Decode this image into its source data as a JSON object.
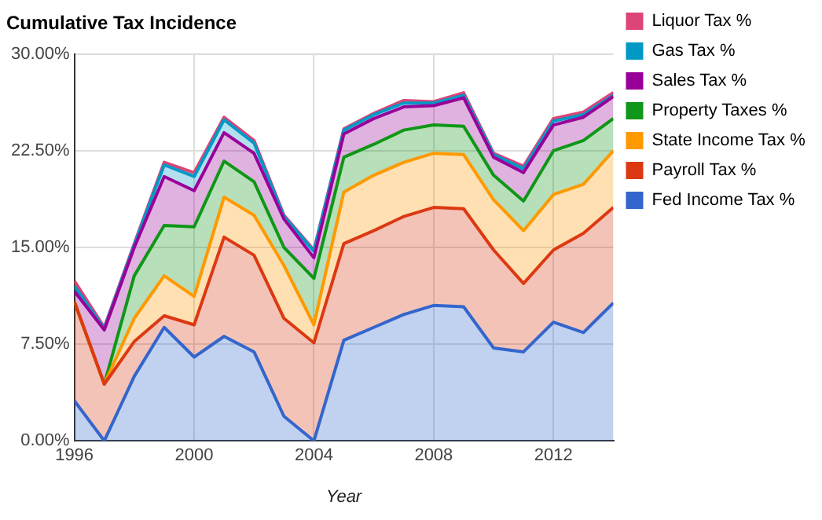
{
  "chart_data": {
    "type": "area",
    "title": "Cumulative Tax Incidence",
    "xlabel": "Year",
    "stacked": true,
    "marker": "none",
    "grid": true,
    "legend": "top right",
    "x": [
      1996,
      1997,
      1998,
      1999,
      2000,
      2001,
      2002,
      2003,
      2004,
      2005,
      2006,
      2007,
      2008,
      2009,
      2010,
      2011,
      2012,
      2013,
      2014
    ],
    "xlim": [
      1996,
      2014
    ],
    "xticks": [
      1996,
      2000,
      2004,
      2008,
      2012
    ],
    "ylim": [
      0,
      30
    ],
    "yticks": [
      {
        "value": 0,
        "label": "0.00%"
      },
      {
        "value": 7.5,
        "label": "7.50%"
      },
      {
        "value": 15,
        "label": "15.00%"
      },
      {
        "value": 22.5,
        "label": "22.50%"
      },
      {
        "value": 30,
        "label": "30.00%"
      }
    ],
    "series": [
      {
        "name": "Fed Income Tax %",
        "color": "#3366cc",
        "values": [
          3.1,
          0,
          5.0,
          8.8,
          6.5,
          8.1,
          6.9,
          1.9,
          0,
          7.8,
          8.8,
          9.8,
          10.5,
          10.4,
          7.2,
          6.9,
          9.2,
          8.4,
          10.7
        ]
      },
      {
        "name": "Payroll Tax %",
        "color": "#dc3912",
        "values": [
          7.7,
          4.4,
          2.7,
          0.9,
          2.5,
          7.7,
          7.5,
          7.6,
          7.6,
          7.5,
          7.5,
          7.6,
          7.6,
          7.6,
          7.6,
          5.3,
          5.6,
          7.7,
          7.4
        ]
      },
      {
        "name": "State Income Tax %",
        "color": "#ff9900",
        "values": [
          0,
          0,
          1.8,
          3.1,
          2.2,
          3.1,
          3.1,
          4.1,
          1.4,
          4.0,
          4.3,
          4.2,
          4.2,
          4.2,
          3.9,
          4.1,
          4.3,
          3.8,
          4.4
        ]
      },
      {
        "name": "Property Taxes %",
        "color": "#109618",
        "values": [
          0,
          0,
          3.3,
          3.9,
          5.4,
          2.8,
          2.6,
          1.4,
          3.6,
          2.7,
          2.4,
          2.5,
          2.2,
          2.2,
          1.9,
          2.3,
          3.4,
          3.4,
          2.5
        ]
      },
      {
        "name": "Sales Tax %",
        "color": "#990099",
        "values": [
          0.8,
          4.2,
          2.2,
          3.8,
          2.8,
          2.2,
          2.2,
          2.2,
          1.6,
          1.8,
          2.0,
          1.8,
          1.5,
          2.2,
          1.4,
          2.2,
          2.0,
          1.8,
          1.7
        ]
      },
      {
        "name": "Gas Tax %",
        "color": "#0099c6",
        "values": [
          0.4,
          0.1,
          0.2,
          0.9,
          1.1,
          1.0,
          0.8,
          0.2,
          0.5,
          0.3,
          0.3,
          0.3,
          0.2,
          0.2,
          0.2,
          0.3,
          0.3,
          0.2,
          0.1
        ]
      },
      {
        "name": "Liquor Tax %",
        "color": "#dd4477",
        "values": [
          0.4,
          0.1,
          0.1,
          0.2,
          0.3,
          0.2,
          0.2,
          0.1,
          0.1,
          0.1,
          0.1,
          0.2,
          0.1,
          0.2,
          0.1,
          0.2,
          0.2,
          0.2,
          0.2
        ]
      }
    ]
  }
}
